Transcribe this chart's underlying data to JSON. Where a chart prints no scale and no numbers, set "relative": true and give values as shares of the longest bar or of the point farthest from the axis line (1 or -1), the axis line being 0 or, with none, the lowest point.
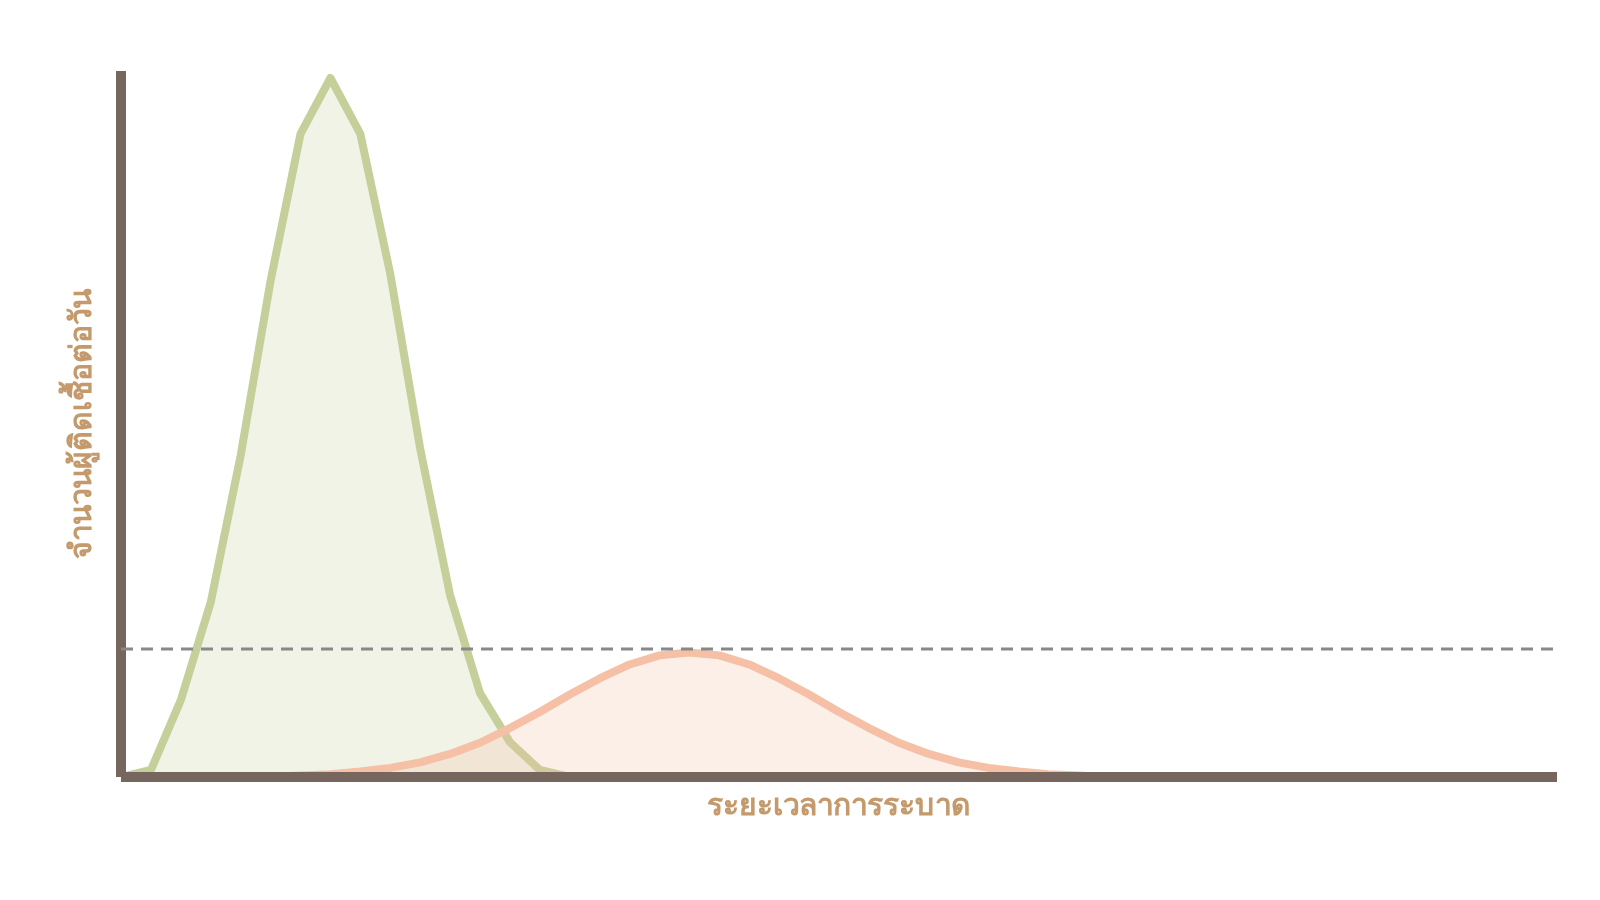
{
  "chart_data": {
    "type": "area",
    "relative": true,
    "xlabel": "ระยะเวลาการระบาด",
    "ylabel": "จำนวนผู้ติดเชื้อต่อวัน",
    "grid": false,
    "categories": [
      null,
      null,
      null,
      null,
      null,
      null,
      null,
      null,
      null,
      null,
      null,
      null,
      null,
      null,
      null,
      null,
      null,
      null,
      null,
      null,
      null,
      null,
      null,
      null,
      null,
      null,
      null,
      null,
      null,
      null,
      null,
      null,
      null,
      null,
      null,
      null,
      null,
      null,
      null,
      null,
      null,
      null,
      null,
      null,
      null,
      null,
      null,
      null,
      null
    ],
    "series": [
      {
        "color": "#c5cf9a",
        "values": [
          0,
          0.01,
          0.11,
          0.25,
          0.46,
          0.71,
          0.92,
          1,
          0.92,
          0.72,
          0.47,
          0.26,
          0.12,
          0.05,
          0.01,
          0,
          null,
          null,
          null,
          null,
          null,
          null,
          null,
          null,
          null,
          null,
          null,
          null,
          null,
          null,
          null,
          null,
          null,
          null,
          null,
          null,
          null,
          null,
          null,
          null,
          null,
          null,
          null,
          null,
          null,
          null,
          null,
          null,
          null
        ]
      },
      {
        "color": "#f5c0a5",
        "values": [
          null,
          null,
          null,
          null,
          null,
          0,
          0.002,
          0.004,
          0.008,
          0.013,
          0.021,
          0.033,
          0.049,
          0.07,
          0.093,
          0.118,
          0.141,
          0.161,
          0.174,
          0.178,
          0.174,
          0.161,
          0.141,
          0.118,
          0.093,
          0.07,
          0.049,
          0.033,
          0.021,
          0.013,
          0.008,
          0.004,
          0.002,
          0,
          null,
          null,
          null,
          null,
          null,
          null,
          null,
          null,
          null,
          null,
          null,
          null,
          null,
          null,
          null
        ]
      }
    ],
    "ref_lines": [
      {
        "axis": "y",
        "value": 0.183,
        "color": "#888888",
        "line_style": "dashed"
      }
    ]
  }
}
